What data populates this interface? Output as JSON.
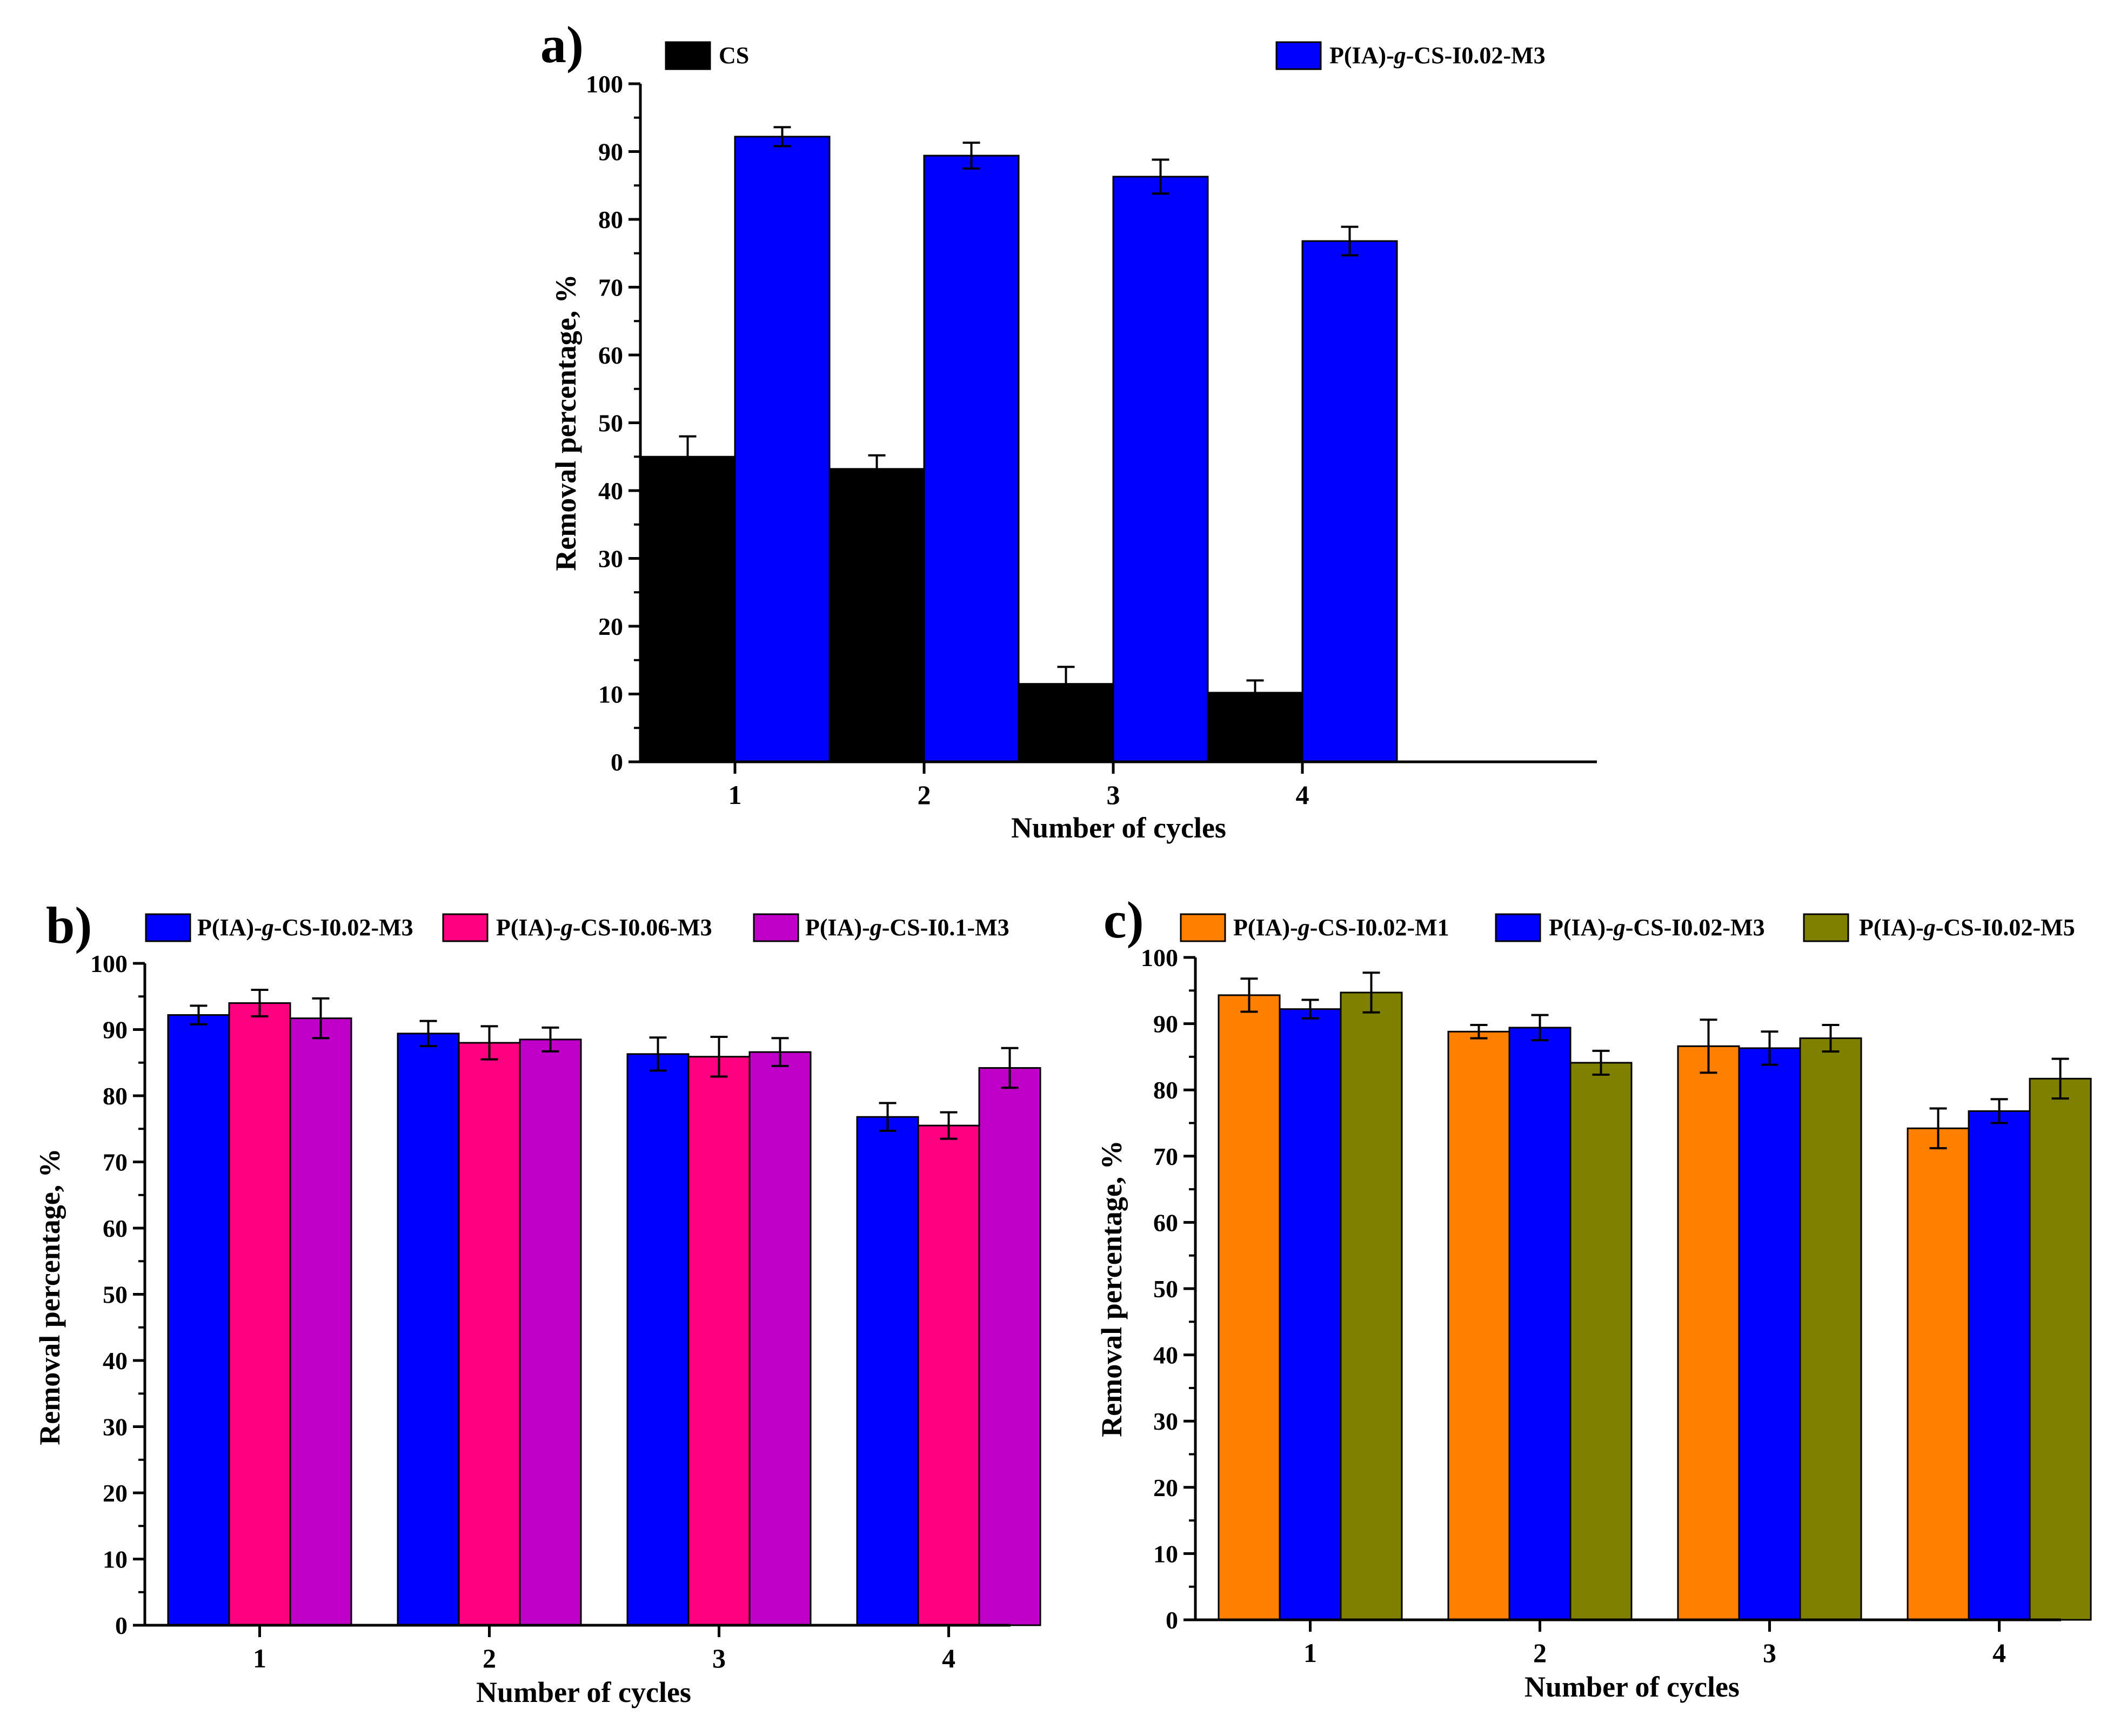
{
  "figure": {
    "colors": {
      "axis": "#000000",
      "error_bar": "#000000"
    }
  },
  "chart_data": [
    {
      "id": "a",
      "type": "bar",
      "panel_label": "a)",
      "categories": [
        "1",
        "2",
        "3",
        "4"
      ],
      "xlabel": "Number of cycles",
      "ylabel": "Removal percentage, %",
      "ylim": [
        0,
        100
      ],
      "yticks": [
        0,
        10,
        20,
        30,
        40,
        50,
        60,
        70,
        80,
        90,
        100
      ],
      "legend_position": "top",
      "series": [
        {
          "name_parts": [
            {
              "text": "CS",
              "italic": false
            }
          ],
          "color": "#000000",
          "values": [
            45.0,
            43.2,
            11.5,
            10.2
          ],
          "errors": [
            3.0,
            2.0,
            2.5,
            1.8
          ]
        },
        {
          "name_parts": [
            {
              "text": "P(IA)-",
              "italic": false
            },
            {
              "text": "g",
              "italic": true
            },
            {
              "text": "-CS-I0.02-M3",
              "italic": false
            }
          ],
          "color": "#0000ff",
          "values": [
            92.2,
            89.4,
            86.3,
            76.8
          ],
          "errors": [
            1.4,
            1.9,
            2.5,
            2.1
          ]
        }
      ]
    },
    {
      "id": "b",
      "type": "bar",
      "panel_label": "b)",
      "categories": [
        "1",
        "2",
        "3",
        "4"
      ],
      "xlabel": "Number of cycles",
      "ylabel": "Removal percentage, %",
      "ylim": [
        0,
        100
      ],
      "yticks": [
        0,
        10,
        20,
        30,
        40,
        50,
        60,
        70,
        80,
        90,
        100
      ],
      "legend_position": "top",
      "series": [
        {
          "name_parts": [
            {
              "text": "P(IA)-",
              "italic": false
            },
            {
              "text": "g",
              "italic": true
            },
            {
              "text": "-CS-I0.02-M3",
              "italic": false
            }
          ],
          "color": "#0000ff",
          "values": [
            92.2,
            89.4,
            86.3,
            76.8
          ],
          "errors": [
            1.4,
            1.9,
            2.5,
            2.1
          ]
        },
        {
          "name_parts": [
            {
              "text": "P(IA)-",
              "italic": false
            },
            {
              "text": "g",
              "italic": true
            },
            {
              "text": "-CS-I0.06-M3",
              "italic": false
            }
          ],
          "color": "#ff0080",
          "values": [
            94.0,
            88.0,
            85.9,
            75.5
          ],
          "errors": [
            2.0,
            2.5,
            3.0,
            2.0
          ]
        },
        {
          "name_parts": [
            {
              "text": "P(IA)-",
              "italic": false
            },
            {
              "text": "g",
              "italic": true
            },
            {
              "text": "-CS-I0.1-M3",
              "italic": false
            }
          ],
          "color": "#c000c8",
          "values": [
            91.7,
            88.5,
            86.6,
            84.2
          ],
          "errors": [
            3.0,
            1.8,
            2.1,
            3.0
          ]
        }
      ]
    },
    {
      "id": "c",
      "type": "bar",
      "panel_label": "c)",
      "categories": [
        "1",
        "2",
        "3",
        "4"
      ],
      "xlabel": "Number of cycles",
      "ylabel": "Removal percentage, %",
      "ylim": [
        0,
        100
      ],
      "yticks": [
        0,
        10,
        20,
        30,
        40,
        50,
        60,
        70,
        80,
        90,
        100
      ],
      "legend_position": "top",
      "series": [
        {
          "name_parts": [
            {
              "text": "P(IA)-",
              "italic": false
            },
            {
              "text": "g",
              "italic": true
            },
            {
              "text": "-CS-I0.02-M1",
              "italic": false
            }
          ],
          "color": "#ff7f00",
          "values": [
            94.3,
            88.8,
            86.6,
            74.2
          ],
          "errors": [
            2.5,
            1.0,
            4.0,
            3.0
          ]
        },
        {
          "name_parts": [
            {
              "text": "P(IA)-",
              "italic": false
            },
            {
              "text": "g",
              "italic": true
            },
            {
              "text": "-CS-I0.02-M3",
              "italic": false
            }
          ],
          "color": "#0000ff",
          "values": [
            92.2,
            89.4,
            86.3,
            76.8
          ],
          "errors": [
            1.4,
            1.9,
            2.5,
            1.8
          ]
        },
        {
          "name_parts": [
            {
              "text": "P(IA)-",
              "italic": false
            },
            {
              "text": "g",
              "italic": true
            },
            {
              "text": "-CS-I0.02-M5",
              "italic": false
            }
          ],
          "color": "#808000",
          "values": [
            94.7,
            84.1,
            87.8,
            81.7
          ],
          "errors": [
            3.0,
            1.8,
            2.0,
            3.0
          ]
        }
      ]
    }
  ]
}
